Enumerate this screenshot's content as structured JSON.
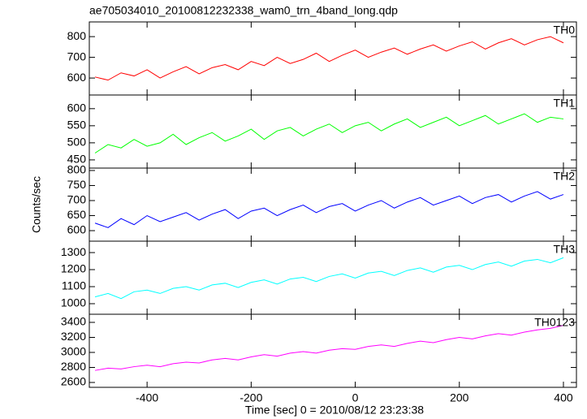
{
  "title": "ae705034010_20100812232338_wam0_trn_4band_long.qdp",
  "ylabel": "Counts/sec",
  "xlabel": "Time [sec] 0 = 2010/08/12 23:23:38",
  "xlim": [
    -511,
    425
  ],
  "xticks": [
    -400,
    -200,
    0,
    200,
    400
  ],
  "chart_data": [
    {
      "type": "line",
      "x": [
        -500,
        -475,
        -450,
        -425,
        -400,
        -375,
        -350,
        -325,
        -300,
        -275,
        -250,
        -225,
        -200,
        -175,
        -150,
        -125,
        -100,
        -75,
        -50,
        -25,
        0,
        25,
        50,
        75,
        100,
        125,
        150,
        175,
        200,
        225,
        250,
        275,
        300,
        325,
        350,
        375,
        400
      ],
      "series": [
        {
          "name": "TH0",
          "color": "#ff0000",
          "values": [
            605,
            590,
            625,
            610,
            640,
            600,
            630,
            655,
            620,
            650,
            665,
            640,
            680,
            660,
            700,
            670,
            690,
            720,
            680,
            710,
            735,
            700,
            725,
            745,
            715,
            740,
            760,
            730,
            755,
            775,
            740,
            770,
            790,
            760,
            785,
            800,
            770
          ]
        }
      ],
      "ylim": [
        518,
        871
      ],
      "yticks": [
        600,
        700,
        800
      ]
    },
    {
      "type": "line",
      "x": [
        -500,
        -475,
        -450,
        -425,
        -400,
        -375,
        -350,
        -325,
        -300,
        -275,
        -250,
        -225,
        -200,
        -175,
        -150,
        -125,
        -100,
        -75,
        -50,
        -25,
        0,
        25,
        50,
        75,
        100,
        125,
        150,
        175,
        200,
        225,
        250,
        275,
        300,
        325,
        350,
        375,
        400
      ],
      "series": [
        {
          "name": "TH1",
          "color": "#00ff00",
          "values": [
            470,
            495,
            485,
            510,
            490,
            500,
            525,
            495,
            515,
            530,
            505,
            520,
            540,
            510,
            535,
            545,
            520,
            540,
            555,
            530,
            550,
            560,
            535,
            555,
            570,
            545,
            560,
            575,
            550,
            565,
            580,
            555,
            570,
            585,
            560,
            575,
            570
          ]
        }
      ],
      "ylim": [
        426,
        640
      ],
      "yticks": [
        450,
        500,
        550,
        600
      ]
    },
    {
      "type": "line",
      "x": [
        -500,
        -475,
        -450,
        -425,
        -400,
        -375,
        -350,
        -325,
        -300,
        -275,
        -250,
        -225,
        -200,
        -175,
        -150,
        -125,
        -100,
        -75,
        -50,
        -25,
        0,
        25,
        50,
        75,
        100,
        125,
        150,
        175,
        200,
        225,
        250,
        275,
        300,
        325,
        350,
        375,
        400
      ],
      "series": [
        {
          "name": "TH2",
          "color": "#0000ff",
          "values": [
            625,
            610,
            640,
            620,
            650,
            630,
            645,
            660,
            635,
            655,
            670,
            640,
            665,
            675,
            650,
            670,
            685,
            660,
            680,
            690,
            665,
            685,
            700,
            675,
            695,
            710,
            685,
            700,
            715,
            690,
            710,
            720,
            695,
            715,
            730,
            705,
            720
          ]
        }
      ],
      "ylim": [
        565,
        808
      ],
      "yticks": [
        600,
        650,
        700,
        750,
        800
      ]
    },
    {
      "type": "line",
      "x": [
        -500,
        -475,
        -450,
        -425,
        -400,
        -375,
        -350,
        -325,
        -300,
        -275,
        -250,
        -225,
        -200,
        -175,
        -150,
        -125,
        -100,
        -75,
        -50,
        -25,
        0,
        25,
        50,
        75,
        100,
        125,
        150,
        175,
        200,
        225,
        250,
        275,
        300,
        325,
        350,
        375,
        400
      ],
      "series": [
        {
          "name": "TH3",
          "color": "#00ffff",
          "values": [
            1040,
            1060,
            1030,
            1070,
            1080,
            1060,
            1090,
            1100,
            1080,
            1110,
            1120,
            1095,
            1125,
            1140,
            1115,
            1145,
            1155,
            1130,
            1160,
            1175,
            1150,
            1180,
            1190,
            1165,
            1195,
            1210,
            1185,
            1215,
            1225,
            1200,
            1230,
            1245,
            1220,
            1250,
            1260,
            1240,
            1270
          ]
        }
      ],
      "ylim": [
        938,
        1367
      ],
      "yticks": [
        1000,
        1100,
        1200,
        1300
      ]
    },
    {
      "type": "line",
      "x": [
        -500,
        -475,
        -450,
        -425,
        -400,
        -375,
        -350,
        -325,
        -300,
        -275,
        -250,
        -225,
        -200,
        -175,
        -150,
        -125,
        -100,
        -75,
        -50,
        -25,
        0,
        25,
        50,
        75,
        100,
        125,
        150,
        175,
        200,
        225,
        250,
        275,
        300,
        325,
        350,
        375,
        400
      ],
      "series": [
        {
          "name": "TH0123",
          "color": "#ff00ff",
          "values": [
            2760,
            2790,
            2780,
            2810,
            2830,
            2810,
            2850,
            2870,
            2860,
            2900,
            2920,
            2900,
            2940,
            2970,
            2950,
            2990,
            3010,
            2990,
            3030,
            3050,
            3040,
            3080,
            3100,
            3080,
            3120,
            3150,
            3130,
            3170,
            3200,
            3180,
            3220,
            3250,
            3230,
            3270,
            3300,
            3320,
            3360
          ]
        }
      ],
      "ylim": [
        2535,
        3508
      ],
      "yticks": [
        2600,
        2800,
        3000,
        3200,
        3400
      ]
    }
  ]
}
